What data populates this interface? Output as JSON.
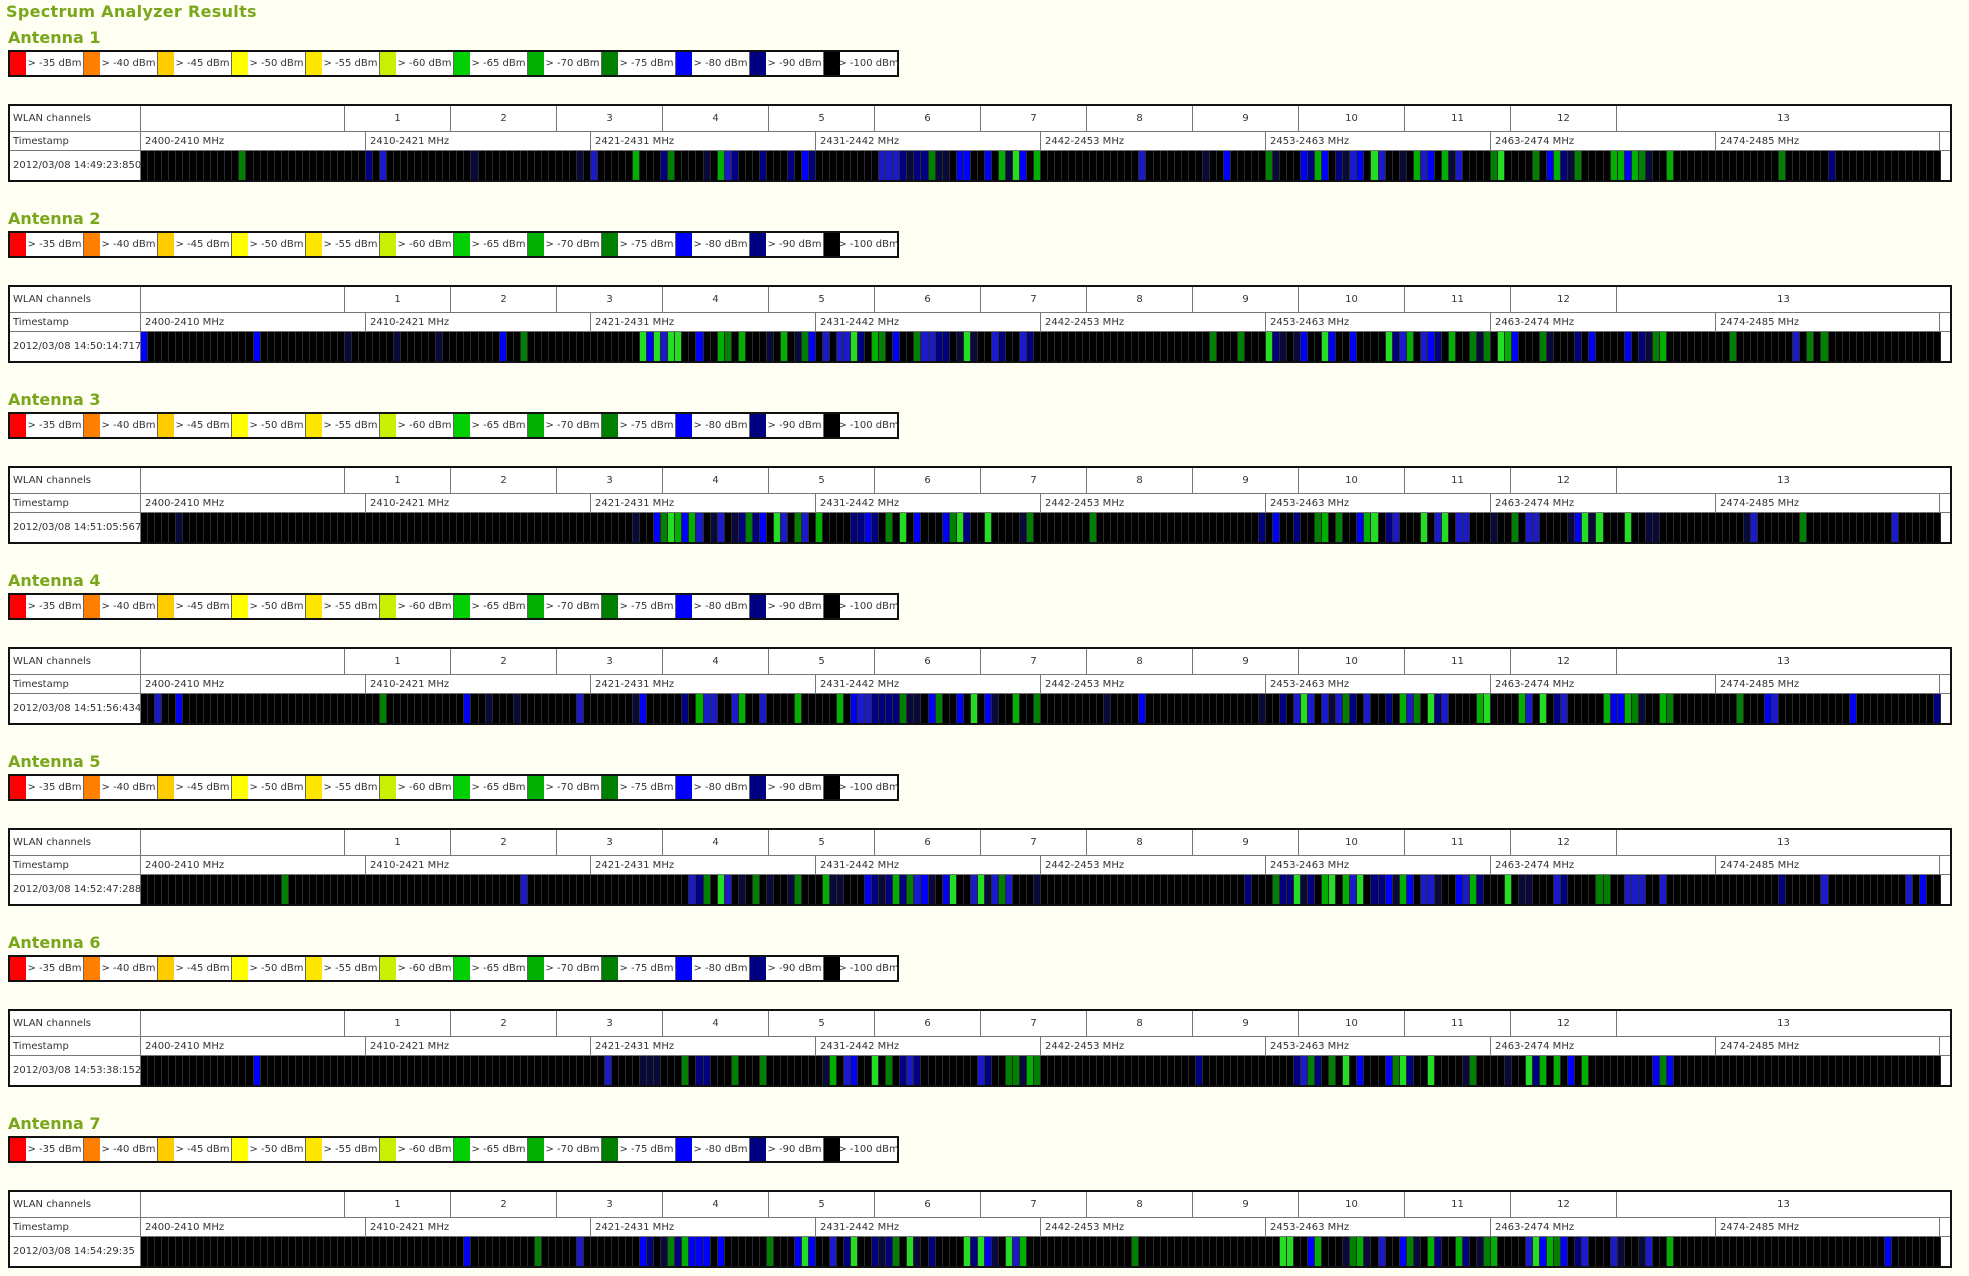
{
  "page_title": "Spectrum Analyzer Results",
  "legend": [
    {
      "label": "> -35 dBm",
      "color": "#ff0000"
    },
    {
      "label": "> -40 dBm",
      "color": "#ff8000"
    },
    {
      "label": "> -45 dBm",
      "color": "#ffcc00"
    },
    {
      "label": "> -50 dBm",
      "color": "#ffff00"
    },
    {
      "label": "> -55 dBm",
      "color": "#ffe600"
    },
    {
      "label": "> -60 dBm",
      "color": "#c8f000"
    },
    {
      "label": "> -65 dBm",
      "color": "#00d000"
    },
    {
      "label": "> -70 dBm",
      "color": "#00b000"
    },
    {
      "label": "> -75 dBm",
      "color": "#008000"
    },
    {
      "label": "> -80 dBm",
      "color": "#0000ff"
    },
    {
      "label": "> -90 dBm",
      "color": "#000080"
    },
    {
      "label": "> -100 dBm",
      "color": "#000000"
    }
  ],
  "row_labels": {
    "channels": "WLAN channels",
    "timestamp": "Timestamp"
  },
  "channels": [
    "1",
    "2",
    "3",
    "4",
    "5",
    "6",
    "7",
    "8",
    "9",
    "10",
    "11",
    "12",
    "13"
  ],
  "freq_ranges": [
    "2400-2410 MHz",
    "2410-2421 MHz",
    "2421-2431 MHz",
    "2431-2442 MHz",
    "2442-2453 MHz",
    "2453-2463 MHz",
    "2463-2474 MHz",
    "2474-2485 MHz"
  ],
  "antennas": [
    {
      "title": "Antenna 1",
      "timestamp": "2012/03/08 14:49:23:850"
    },
    {
      "title": "Antenna 2",
      "timestamp": "2012/03/08 14:50:14:717"
    },
    {
      "title": "Antenna 3",
      "timestamp": "2012/03/08 14:51:05:567"
    },
    {
      "title": "Antenna 4",
      "timestamp": "2012/03/08 14:51:56:434"
    },
    {
      "title": "Antenna 5",
      "timestamp": "2012/03/08 14:52:47:288"
    },
    {
      "title": "Antenna 6",
      "timestamp": "2012/03/08 14:53:38:152"
    },
    {
      "title": "Antenna 7",
      "timestamp": "2012/03/08 14:54:29:35"
    }
  ]
}
